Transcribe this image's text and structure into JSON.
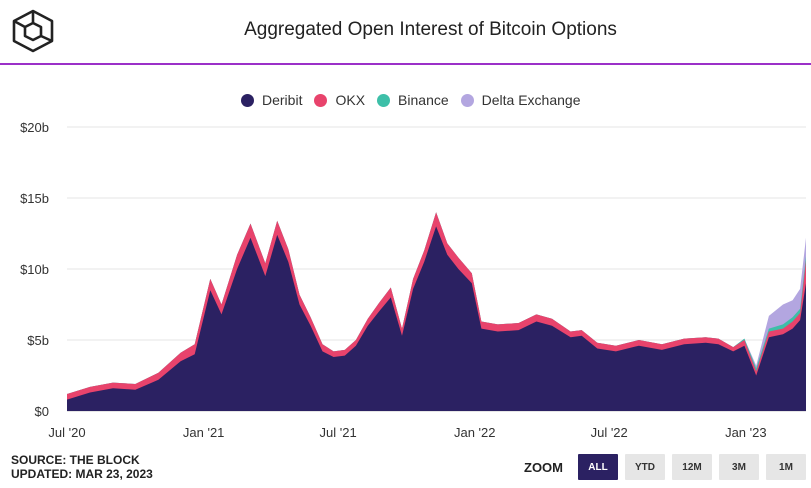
{
  "header": {
    "title": "Aggregated Open Interest of Bitcoin Options"
  },
  "legend": [
    {
      "name": "Deribit",
      "color": "#2b2162"
    },
    {
      "name": "OKX",
      "color": "#e8436c"
    },
    {
      "name": "Binance",
      "color": "#3dbfa8"
    },
    {
      "name": "Delta Exchange",
      "color": "#b3a6e0"
    }
  ],
  "footer": {
    "source": "SOURCE: THE BLOCK",
    "updated": "UPDATED: MAR 23, 2023"
  },
  "zoom": {
    "label": "ZOOM",
    "buttons": [
      "ALL",
      "YTD",
      "12M",
      "3M",
      "1M"
    ],
    "active": "ALL"
  },
  "chart_data": {
    "type": "area",
    "stacked": true,
    "title": "Aggregated Open Interest of Bitcoin Options",
    "ylim": [
      0,
      20
    ],
    "y_unit": "billion USD",
    "y_ticks": [
      0,
      5,
      10,
      15,
      20
    ],
    "y_tick_labels": [
      "$0",
      "$5b",
      "$10b",
      "$15b",
      "$20b"
    ],
    "x_range": [
      "2020-07-01",
      "2023-03-23"
    ],
    "x_ticks": [
      "2020-07-01",
      "2021-01-01",
      "2021-07-01",
      "2022-01-01",
      "2022-07-01",
      "2023-01-01"
    ],
    "x_tick_labels": [
      "Jul '20",
      "Jan '21",
      "Jul '21",
      "Jan '22",
      "Jul '22",
      "Jan '23"
    ],
    "grid": true,
    "legend_position": "top",
    "x": [
      "2020-07-01",
      "2020-08-01",
      "2020-09-01",
      "2020-10-01",
      "2020-11-01",
      "2020-12-01",
      "2020-12-20",
      "2021-01-10",
      "2021-01-25",
      "2021-02-15",
      "2021-03-05",
      "2021-03-25",
      "2021-04-10",
      "2021-04-25",
      "2021-05-10",
      "2021-05-25",
      "2021-06-10",
      "2021-06-25",
      "2021-07-10",
      "2021-07-25",
      "2021-08-10",
      "2021-08-25",
      "2021-09-10",
      "2021-09-25",
      "2021-10-10",
      "2021-10-25",
      "2021-11-10",
      "2021-11-25",
      "2021-12-10",
      "2021-12-28",
      "2022-01-10",
      "2022-02-01",
      "2022-03-01",
      "2022-03-25",
      "2022-04-15",
      "2022-05-10",
      "2022-05-25",
      "2022-06-15",
      "2022-07-10",
      "2022-08-10",
      "2022-09-10",
      "2022-10-10",
      "2022-11-08",
      "2022-11-25",
      "2022-12-15",
      "2022-12-30",
      "2023-01-15",
      "2023-02-01",
      "2023-02-20",
      "2023-03-05",
      "2023-03-15",
      "2023-03-23"
    ],
    "series": [
      {
        "name": "Deribit",
        "values": [
          0.8,
          1.3,
          1.6,
          1.5,
          2.2,
          3.5,
          4.0,
          8.5,
          6.8,
          10.0,
          12.2,
          9.5,
          12.4,
          10.5,
          7.5,
          6.0,
          4.2,
          3.8,
          3.9,
          4.6,
          6.0,
          7.0,
          8.0,
          5.3,
          8.6,
          10.5,
          13.0,
          11.0,
          10.0,
          9.0,
          5.8,
          5.6,
          5.7,
          6.3,
          6.0,
          5.2,
          5.3,
          4.4,
          4.2,
          4.6,
          4.3,
          4.7,
          4.8,
          4.7,
          4.2,
          4.6,
          2.5,
          5.2,
          5.4,
          5.8,
          6.4,
          9.0
        ]
      },
      {
        "name": "OKX",
        "values": [
          0.4,
          0.4,
          0.4,
          0.4,
          0.5,
          0.6,
          0.7,
          0.8,
          0.7,
          1.0,
          1.0,
          0.9,
          1.0,
          0.9,
          0.7,
          0.6,
          0.5,
          0.4,
          0.4,
          0.4,
          0.5,
          0.6,
          0.7,
          0.5,
          0.7,
          0.8,
          1.0,
          0.8,
          0.8,
          0.7,
          0.5,
          0.5,
          0.5,
          0.5,
          0.5,
          0.4,
          0.4,
          0.4,
          0.4,
          0.4,
          0.4,
          0.4,
          0.4,
          0.4,
          0.3,
          0.4,
          0.3,
          0.4,
          0.4,
          0.5,
          0.5,
          1.6
        ]
      },
      {
        "name": "Binance",
        "values": [
          0,
          0,
          0,
          0,
          0,
          0,
          0,
          0,
          0,
          0,
          0,
          0,
          0,
          0,
          0,
          0,
          0,
          0,
          0,
          0,
          0,
          0,
          0,
          0,
          0,
          0,
          0,
          0,
          0,
          0,
          0,
          0,
          0,
          0,
          0,
          0,
          0,
          0,
          0,
          0,
          0,
          0,
          0,
          0,
          0,
          0.1,
          0.2,
          0.2,
          0.3,
          0.3,
          0.3,
          0.3
        ]
      },
      {
        "name": "Delta Exchange",
        "values": [
          0,
          0,
          0,
          0,
          0,
          0,
          0,
          0,
          0,
          0,
          0,
          0,
          0,
          0,
          0,
          0,
          0,
          0,
          0,
          0,
          0,
          0,
          0,
          0,
          0,
          0,
          0,
          0,
          0,
          0,
          0,
          0,
          0,
          0,
          0,
          0,
          0,
          0,
          0,
          0,
          0,
          0,
          0,
          0,
          0,
          0,
          0.2,
          0.9,
          1.4,
          1.2,
          1.4,
          1.3
        ]
      }
    ]
  }
}
